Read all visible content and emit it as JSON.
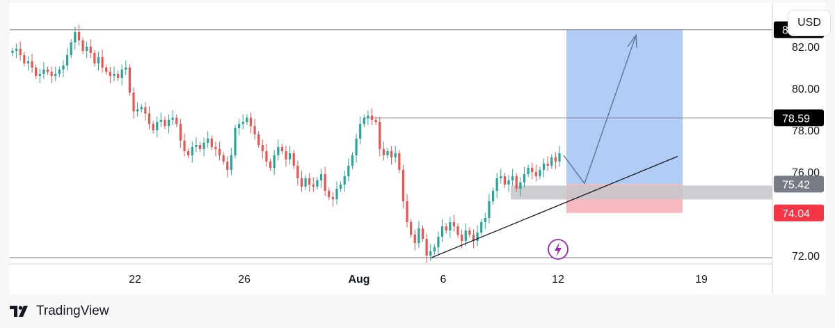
{
  "currency_button": "USD",
  "brand": {
    "name": "TradingView",
    "icon": "tradingview-logo-icon"
  },
  "chart_data": {
    "type": "candlestick",
    "y_axis": {
      "ticks": [
        72.0,
        74.0,
        76.0,
        78.0,
        80.0,
        82.0
      ],
      "ylim": [
        71.6,
        84.1
      ]
    },
    "x_axis": {
      "ticks": [
        "22",
        "26",
        "Aug",
        "6",
        "12",
        "19"
      ]
    },
    "horizontal_lines": [
      82.81,
      78.59,
      71.9
    ],
    "price_labels": [
      {
        "value": "82.81",
        "bg": "#000000",
        "fg": "#ffffff"
      },
      {
        "value": "78.59",
        "bg": "#000000",
        "fg": "#ffffff"
      },
      {
        "value": "75.42",
        "bg": "#787b86",
        "fg": "#ffffff"
      },
      {
        "value": "74.04",
        "bg": "#f23645",
        "fg": "#ffffff"
      }
    ],
    "position": {
      "type": "long",
      "entry": 75.42,
      "target": 82.81,
      "stop": 74.04
    },
    "colors": {
      "up": "#26a69a",
      "down": "#ef5350",
      "target_zone": "#a9c8f5",
      "stop_zone": "#f7b3ba",
      "entry_band": "#c4c5ca",
      "arrow": "#5b7397",
      "trendline": "#131722",
      "lightning": "#9c27b0"
    },
    "close_series": [
      81.8,
      81.9,
      81.6,
      81.2,
      81.3,
      81.0,
      80.6,
      80.7,
      80.9,
      80.8,
      80.6,
      80.7,
      80.9,
      81.1,
      81.6,
      82.2,
      82.7,
      82.3,
      81.8,
      82.0,
      81.7,
      81.2,
      81.5,
      81.0,
      80.8,
      80.6,
      80.7,
      80.5,
      80.9,
      81.0,
      79.8,
      78.9,
      79.0,
      79.1,
      78.8,
      78.3,
      78.0,
      78.4,
      78.5,
      78.2,
      78.5,
      78.6,
      78.3,
      77.5,
      77.0,
      76.8,
      77.2,
      77.3,
      77.1,
      77.4,
      77.6,
      77.2,
      77.1,
      76.8,
      76.5,
      76.1,
      76.8,
      78.1,
      78.3,
      78.4,
      78.6,
      78.2,
      77.8,
      77.3,
      77.0,
      76.5,
      76.2,
      76.8,
      77.2,
      77.0,
      76.6,
      76.9,
      76.3,
      75.7,
      75.3,
      75.7,
      75.4,
      75.3,
      75.6,
      75.9,
      75.1,
      74.8,
      74.7,
      75.2,
      75.4,
      75.8,
      76.3,
      76.8,
      77.6,
      78.3,
      78.6,
      78.7,
      78.5,
      78.4,
      77.1,
      76.8,
      77.0,
      76.7,
      76.9,
      76.1,
      74.6,
      73.6,
      73.0,
      72.6,
      73.3,
      72.8,
      72.0,
      72.2,
      72.4,
      72.9,
      73.4,
      73.2,
      73.6,
      73.4,
      73.0,
      72.7,
      73.2,
      73.0,
      72.7,
      73.1,
      73.6,
      73.8,
      74.6,
      75.1,
      75.7,
      75.8,
      75.4,
      75.6,
      75.8,
      75.2,
      75.5,
      75.9,
      76.2,
      76.0,
      75.8,
      76.1,
      76.4,
      76.3,
      76.7,
      76.5,
      76.9
    ]
  }
}
